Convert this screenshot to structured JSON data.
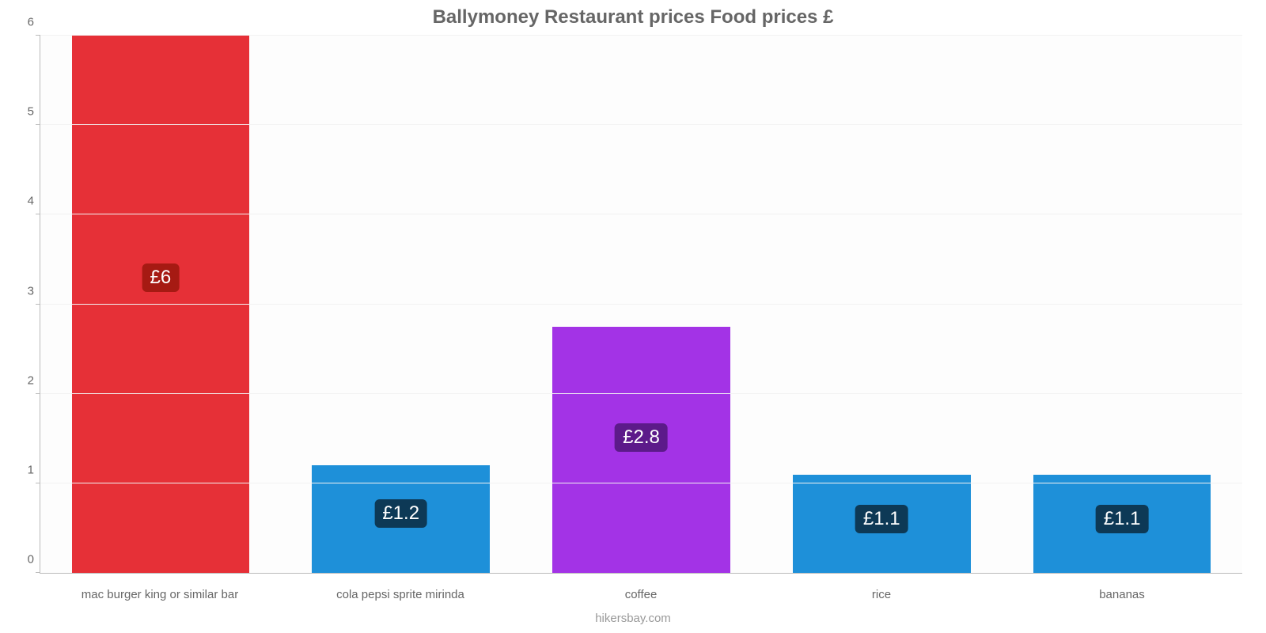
{
  "chart": {
    "type": "bar",
    "title": "Ballymoney Restaurant prices Food prices £",
    "title_fontsize": 24,
    "title_color": "#666666",
    "footer": "hikersbay.com",
    "footer_color": "#999999",
    "background_color": "#fdfdfd",
    "grid_color": "#f2f2f2",
    "axis_color": "#bbbbbb",
    "tick_label_color": "#666666",
    "tick_label_fontsize": 15,
    "x_label_fontsize": 15,
    "y": {
      "min": 0,
      "max": 6,
      "ticks": [
        0,
        1,
        2,
        3,
        4,
        5,
        6
      ]
    },
    "bar_width_pct": 74,
    "value_label_fontsize": 24,
    "items": [
      {
        "category": "mac burger king or similar bar",
        "value": 6,
        "label": "£6",
        "bar_color": "#e63037",
        "badge_bg": "#a61a13",
        "badge_text": "#ffffff"
      },
      {
        "category": "cola pepsi sprite mirinda",
        "value": 1.2,
        "label": "£1.2",
        "bar_color": "#1e90d9",
        "badge_bg": "#0d3956",
        "badge_text": "#ffffff"
      },
      {
        "category": "coffee",
        "value": 2.75,
        "label": "£2.8",
        "bar_color": "#a333e6",
        "badge_bg": "#5c1a8a",
        "badge_text": "#ffffff"
      },
      {
        "category": "rice",
        "value": 1.1,
        "label": "£1.1",
        "bar_color": "#1e90d9",
        "badge_bg": "#0d3956",
        "badge_text": "#ffffff"
      },
      {
        "category": "bananas",
        "value": 1.1,
        "label": "£1.1",
        "bar_color": "#1e90d9",
        "badge_bg": "#0d3956",
        "badge_text": "#ffffff"
      }
    ]
  }
}
